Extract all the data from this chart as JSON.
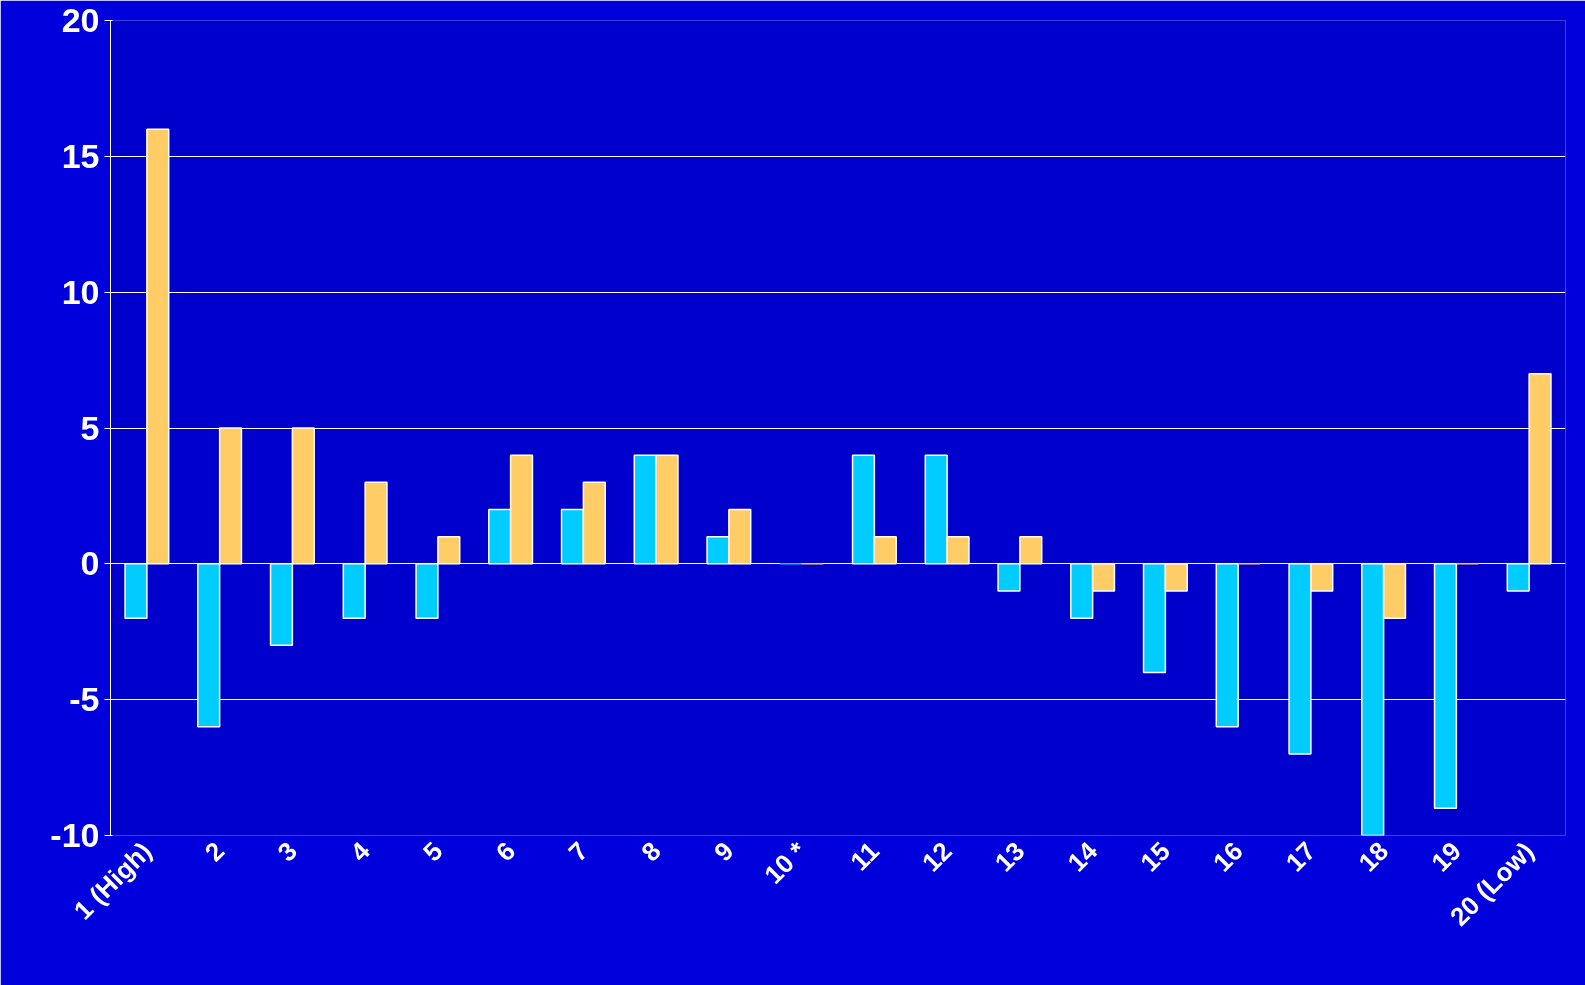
{
  "chart_data": {
    "type": "bar",
    "categories": [
      "1 (High)",
      "2",
      "3",
      "4",
      "5",
      "6",
      "7",
      "8",
      "9",
      "10 *",
      "11",
      "12",
      "13",
      "14",
      "15",
      "16",
      "17",
      "18",
      "19",
      "20 (Low)"
    ],
    "series": [
      {
        "color": "#00ccff",
        "values": [
          -2,
          -6,
          -3,
          -2,
          -2,
          2,
          2,
          4,
          1,
          0,
          4,
          4,
          -1,
          -2,
          -4,
          -6,
          -7,
          -10,
          -9,
          -1
        ]
      },
      {
        "color": "#ffcc66",
        "values": [
          16,
          5,
          5,
          3,
          1,
          4,
          3,
          4,
          2,
          0,
          1,
          1,
          1,
          -1,
          -1,
          0,
          -1,
          -2,
          0,
          7
        ]
      }
    ],
    "ylim": [
      -10,
      20
    ],
    "yticks": [
      -10,
      -5,
      0,
      5,
      10,
      15,
      20
    ],
    "grid": "y"
  }
}
